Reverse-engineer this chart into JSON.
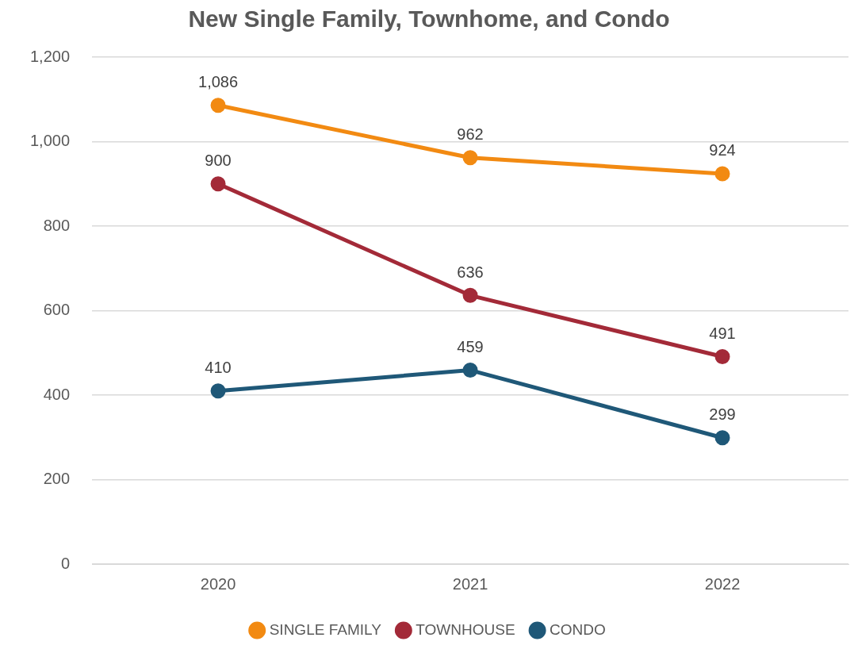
{
  "chart_data": {
    "type": "line",
    "title": "New Single Family, Townhome, and Condo",
    "categories": [
      "2020",
      "2021",
      "2022"
    ],
    "series": [
      {
        "name": "SINGLE FAMILY",
        "color": "#f28a12",
        "values": [
          1086,
          962,
          924
        ],
        "value_labels": [
          "1,086",
          "962",
          "924"
        ]
      },
      {
        "name": "TOWNHOUSE",
        "color": "#a32a38",
        "values": [
          900,
          636,
          491
        ],
        "value_labels": [
          "900",
          "636",
          "491"
        ]
      },
      {
        "name": "CONDO",
        "color": "#1f5878",
        "values": [
          410,
          459,
          299
        ],
        "value_labels": [
          "410",
          "459",
          "299"
        ]
      }
    ],
    "ylim": [
      0,
      1200
    ],
    "yticks": [
      {
        "value": 0,
        "label": "0"
      },
      {
        "value": 200,
        "label": "200"
      },
      {
        "value": 400,
        "label": "400"
      },
      {
        "value": 600,
        "label": "600"
      },
      {
        "value": 800,
        "label": "800"
      },
      {
        "value": 1000,
        "label": "1,000"
      },
      {
        "value": 1200,
        "label": "1,200"
      }
    ],
    "grid": "y",
    "legend": "bottom",
    "marker": "circle",
    "line_style": "solid"
  }
}
